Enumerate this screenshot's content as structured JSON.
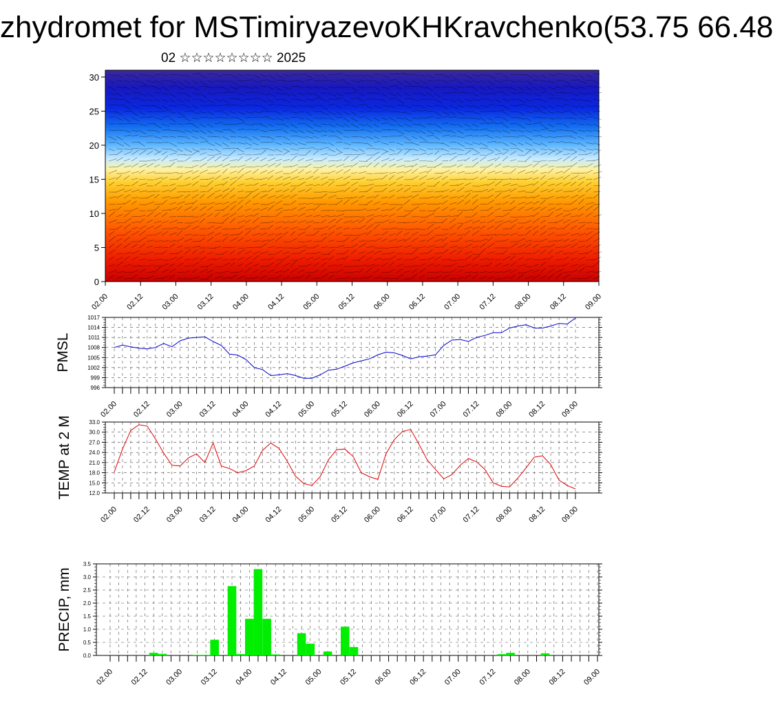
{
  "title": "zhydromet for MSTimiryazevoKHKravchenko(53.75 66.48",
  "subtitle": "02 ☆☆☆☆☆☆☆☆ 2025",
  "time_labels": [
    "02.00",
    "02.12",
    "03.00",
    "03.12",
    "04.00",
    "04.12",
    "05.00",
    "05.12",
    "06.00",
    "06.12",
    "07.00",
    "07.12",
    "08.00",
    "08.12",
    "09.00"
  ],
  "chart_data": [
    {
      "type": "heatmap",
      "title": "",
      "xlabel": "",
      "ylabel": "",
      "ylim": [
        0,
        31
      ],
      "yticks": [
        0,
        5,
        10,
        15,
        20,
        25,
        30
      ],
      "colormap": [
        "#c80000",
        "#ff2200",
        "#ff6a00",
        "#ffaa00",
        "#ffe040",
        "#fff6b0",
        "#bfe6ff",
        "#4aa8ff",
        "#0a50f0",
        "#1010c8",
        "#3020a0"
      ],
      "overlay": "wind vectors",
      "description_values": "Lower levels warm (red) transitioning to cool (blue) above about 17-20 on vertical axis"
    },
    {
      "type": "line",
      "ylabel": "PMSL",
      "ylim": [
        996,
        1017
      ],
      "yticks": [
        "996",
        "999",
        "1002",
        "1005",
        "1008",
        "1011",
        "1014",
        "1017"
      ],
      "color": "#0000cc",
      "x_step_hours": 3,
      "values": [
        1008,
        1008.7,
        1008.2,
        1007.8,
        1007.6,
        1008.0,
        1009.2,
        1008.2,
        1010.0,
        1010.8,
        1011.0,
        1011.2,
        1009.8,
        1008.6,
        1006.0,
        1005.7,
        1004.4,
        1002.0,
        1001.4,
        999.6,
        999.8,
        1000.2,
        999.6,
        998.8,
        998.8,
        999.8,
        1001.2,
        1001.5,
        1002.4,
        1003.4,
        1004.0,
        1004.6,
        1005.8,
        1006.6,
        1006.4,
        1005.6,
        1004.6,
        1005.2,
        1005.4,
        1005.8,
        1008.6,
        1010.2,
        1010.4,
        1009.8,
        1011.0,
        1011.6,
        1012.4,
        1012.4,
        1013.8,
        1014.4,
        1014.8,
        1013.8,
        1013.8,
        1014.4,
        1015.2,
        1015.0,
        1016.8
      ]
    },
    {
      "type": "line",
      "ylabel": "TEMP at 2 M",
      "ylim": [
        12,
        33
      ],
      "yticks": [
        "12.0",
        "15.0",
        "18.0",
        "21.0",
        "24.0",
        "27.0",
        "30.0",
        "33.0"
      ],
      "color": "#e00000",
      "x_step_hours": 3,
      "values": [
        18.2,
        25.0,
        30.5,
        32.2,
        31.8,
        28.0,
        23.8,
        20.2,
        20.0,
        22.4,
        23.6,
        21.0,
        26.8,
        20.0,
        19.2,
        18.0,
        18.6,
        20.0,
        24.6,
        26.8,
        25.2,
        21.4,
        17.0,
        14.8,
        14.2,
        16.8,
        21.8,
        24.8,
        25.0,
        22.8,
        18.0,
        16.8,
        16.0,
        23.6,
        27.8,
        30.2,
        30.8,
        26.4,
        21.8,
        19.0,
        16.2,
        17.4,
        20.2,
        22.2,
        21.2,
        19.0,
        15.0,
        14.0,
        13.8,
        16.4,
        19.4,
        22.6,
        23.0,
        20.4,
        15.8,
        14.2,
        13.2
      ]
    },
    {
      "type": "bar",
      "ylabel": "PRECIP, mm",
      "ylim": [
        0,
        3.5
      ],
      "yticks": [
        "0.0",
        "0.5",
        "1.0",
        "1.5",
        "2.0",
        "2.5",
        "3.0",
        "3.5"
      ],
      "color": "#00ee00",
      "x_step_hours": 3,
      "values": [
        0,
        0,
        0,
        0,
        0,
        0.1,
        0.06,
        0,
        0,
        0,
        0.02,
        0.02,
        0.6,
        0,
        2.65,
        0.05,
        1.4,
        3.3,
        1.4,
        0.04,
        0,
        0,
        0.85,
        0.45,
        0,
        0.15,
        0,
        1.1,
        0.32,
        0,
        0,
        0,
        0,
        0,
        0,
        0,
        0,
        0,
        0,
        0,
        0,
        0,
        0,
        0,
        0,
        0.05,
        0.1,
        0,
        0,
        0,
        0.08,
        0,
        0,
        0,
        0,
        0,
        0
      ]
    }
  ]
}
